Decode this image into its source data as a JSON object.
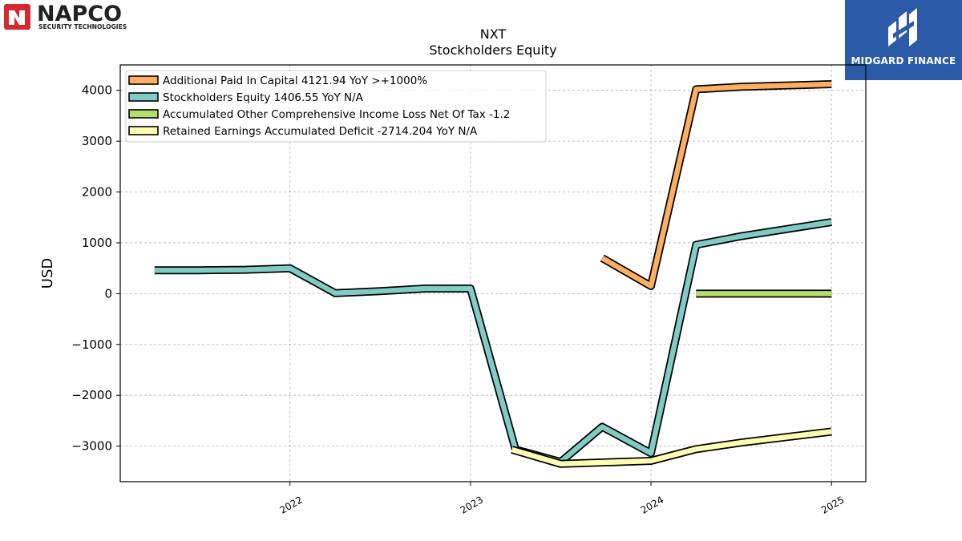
{
  "logos": {
    "left": {
      "name": "NAPCO",
      "tagline": "SECURITY TECHNOLOGIES",
      "accent": "#d7282f"
    },
    "right": {
      "name": "MIDGARD FINANCE",
      "background": "#2a5aa8"
    }
  },
  "chart_data": {
    "type": "line",
    "title": "NXT",
    "subtitle": "Stockholders  Equity",
    "ylabel": "USD",
    "xlabel": "",
    "ylim": [
      -3700,
      4500
    ],
    "xlim": [
      2021.06,
      2025.19
    ],
    "yticks": [
      -3000,
      -2000,
      -1000,
      0,
      1000,
      2000,
      3000,
      4000
    ],
    "xticks": [
      2022,
      2023,
      2024,
      2025
    ],
    "grid": true,
    "legend_position": "top-left",
    "series": [
      {
        "name": "Additional Paid In Capital  4121.94 YoY >+1000%",
        "color": "#fdae61",
        "points": [
          [
            2023.73,
            700
          ],
          [
            2024.0,
            150
          ],
          [
            2024.25,
            4020
          ],
          [
            2024.5,
            4070
          ],
          [
            2025.0,
            4122
          ]
        ]
      },
      {
        "name": "Stockholders Equity  1406.55 YoY N/A",
        "color": "#80cbc4",
        "points": [
          [
            2021.25,
            460
          ],
          [
            2021.5,
            460
          ],
          [
            2021.75,
            470
          ],
          [
            2022.0,
            500
          ],
          [
            2022.25,
            10
          ],
          [
            2022.5,
            50
          ],
          [
            2022.75,
            100
          ],
          [
            2023.0,
            100
          ],
          [
            2023.25,
            -3070
          ],
          [
            2023.5,
            -3310
          ],
          [
            2023.73,
            -2620
          ],
          [
            2024.0,
            -3140
          ],
          [
            2024.25,
            960
          ],
          [
            2024.5,
            1130
          ],
          [
            2025.0,
            1407
          ]
        ]
      },
      {
        "name": "Accumulated Other Comprehensive Income Loss Net Of Tax  -1.2",
        "color": "#b3de69",
        "points": [
          [
            2024.25,
            0
          ],
          [
            2024.5,
            0
          ],
          [
            2025.0,
            -1.2
          ]
        ]
      },
      {
        "name": "Retained Earnings Accumulated Deficit  -2714.204 YoY N/A",
        "color": "#ffffb3",
        "points": [
          [
            2023.23,
            -3070
          ],
          [
            2023.5,
            -3350
          ],
          [
            2024.0,
            -3290
          ],
          [
            2024.25,
            -3060
          ],
          [
            2024.5,
            -2930
          ],
          [
            2025.0,
            -2714
          ]
        ]
      }
    ]
  }
}
